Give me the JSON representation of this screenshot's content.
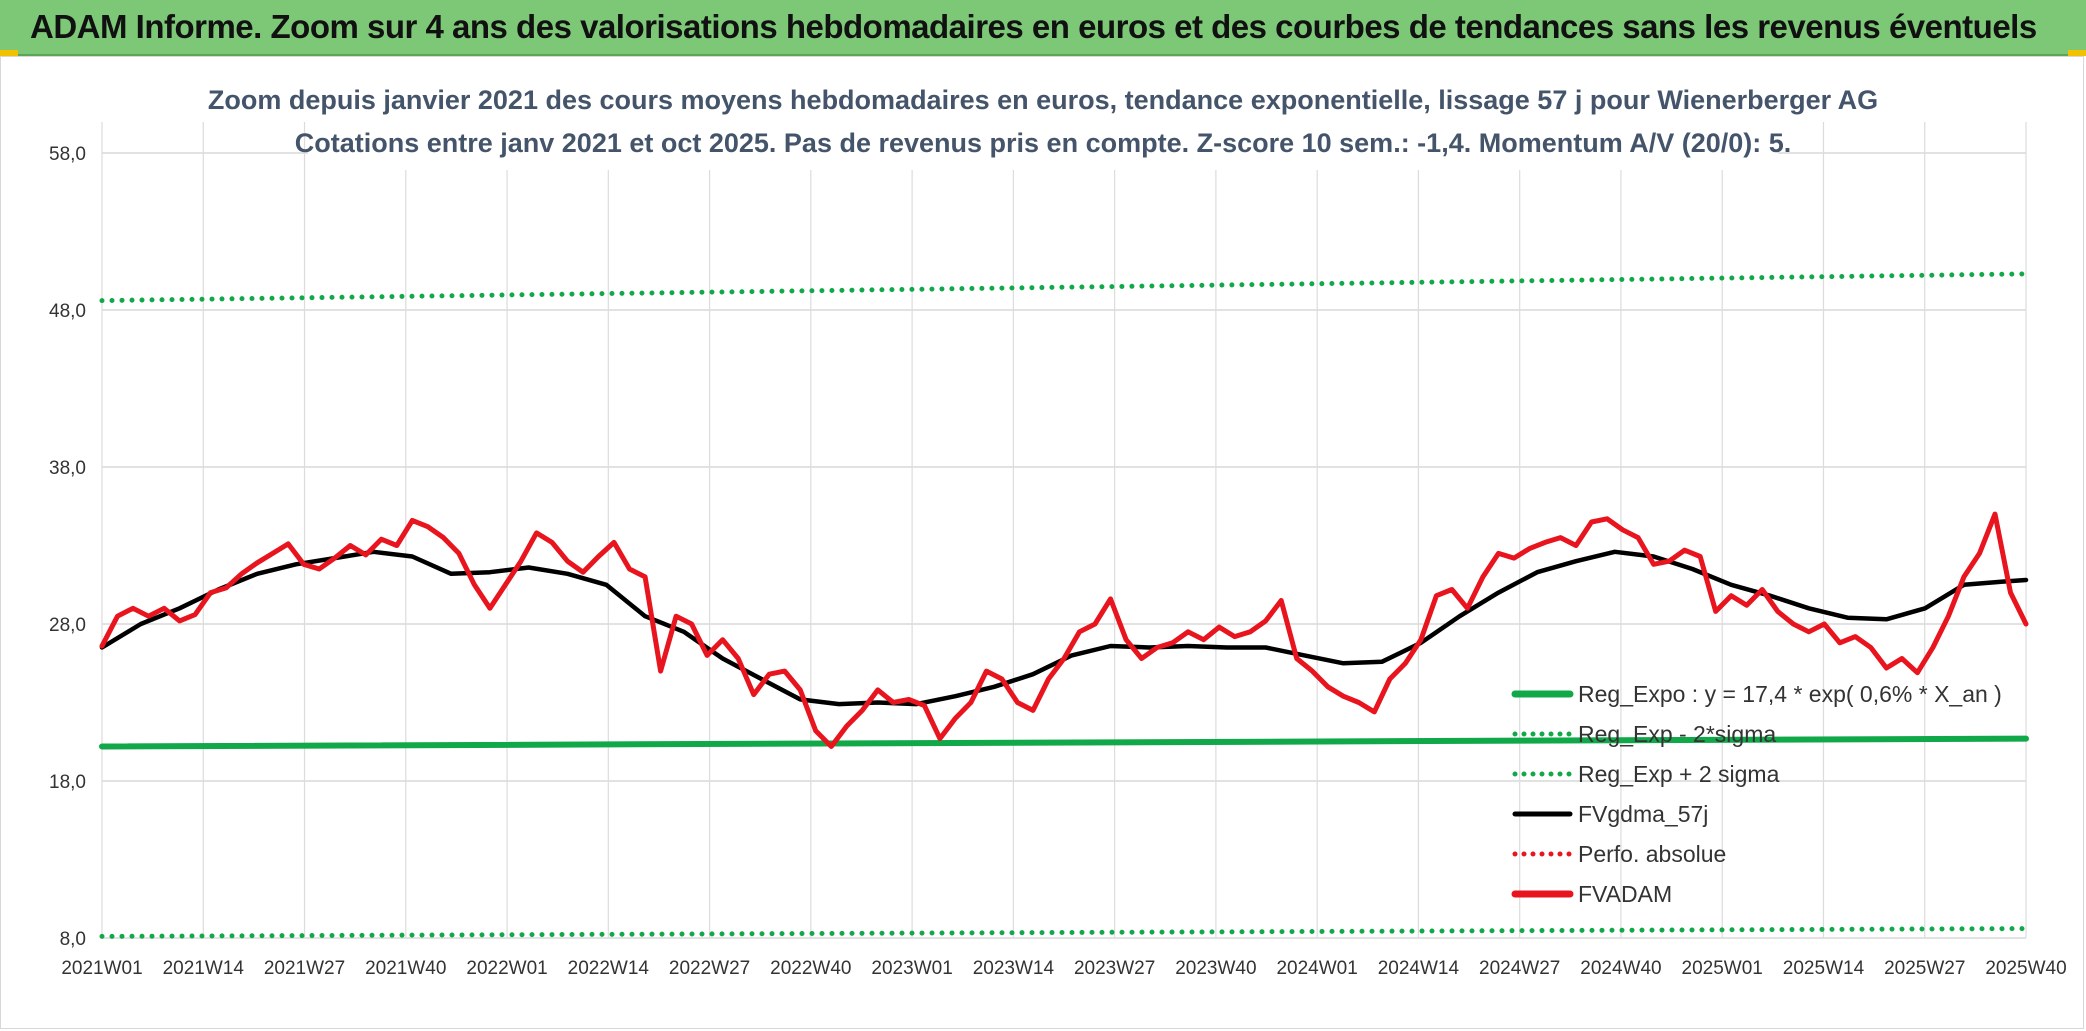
{
  "banner": {
    "title": "ADAM Informe. Zoom sur 4 ans des valorisations hebdomadaires en euros et des courbes de tendances sans les revenus éventuels",
    "color": "#7cc877"
  },
  "chart_data": {
    "type": "line",
    "title_line1": "Zoom depuis janvier 2021 des cours moyens hebdomadaires en euros, tendance exponentielle, lissage 57 j pour Wienerberger AG",
    "title_line2": "Cotations entre janv 2021 et oct 2025. Pas de revenus pris en compte. Z-score 10 sem.: -1,4. Momentum A/V (20/0): 5.",
    "ylim": [
      8,
      58
    ],
    "y_ticks": [
      "8,0",
      "18,0",
      "28,0",
      "38,0",
      "48,0",
      "58,0"
    ],
    "y_tick_values": [
      8,
      18,
      28,
      38,
      48,
      58
    ],
    "x_ticks": [
      "2021W01",
      "2021W14",
      "2021W27",
      "2021W40",
      "2022W01",
      "2022W14",
      "2022W27",
      "2022W40",
      "2023W01",
      "2023W14",
      "2023W27",
      "2023W40",
      "2024W01",
      "2024W14",
      "2024W27",
      "2024W40",
      "2025W01",
      "2025W14",
      "2025W27",
      "2025W40"
    ],
    "n_weeks": 248,
    "grid": true,
    "legend_position": "right",
    "series": [
      {
        "name": "Reg_Expo : y = 17,4 * exp( 0,6% *  X_an )",
        "color": "#11a84a",
        "style": "solid",
        "points": [
          [
            0,
            20.2
          ],
          [
            248,
            20.7
          ]
        ]
      },
      {
        "name": "Reg_Exp - 2*sigma",
        "color": "#11a84a",
        "style": "dotted",
        "points": [
          [
            0,
            8.1
          ],
          [
            248,
            8.6
          ]
        ]
      },
      {
        "name": "Reg_Exp + 2 sigma",
        "color": "#11a84a",
        "style": "dotted",
        "points": [
          [
            0,
            48.6
          ],
          [
            248,
            50.3
          ]
        ]
      },
      {
        "name": "FVgdma_57j",
        "color": "#000000",
        "style": "solid",
        "points": [
          [
            0,
            26.5
          ],
          [
            5,
            28.0
          ],
          [
            10,
            29.0
          ],
          [
            15,
            30.2
          ],
          [
            20,
            31.2
          ],
          [
            25,
            31.8
          ],
          [
            30,
            32.2
          ],
          [
            35,
            32.6
          ],
          [
            40,
            32.3
          ],
          [
            45,
            31.2
          ],
          [
            50,
            31.3
          ],
          [
            55,
            31.6
          ],
          [
            60,
            31.2
          ],
          [
            65,
            30.5
          ],
          [
            70,
            28.5
          ],
          [
            75,
            27.5
          ],
          [
            80,
            25.8
          ],
          [
            85,
            24.5
          ],
          [
            90,
            23.2
          ],
          [
            95,
            22.9
          ],
          [
            100,
            23.0
          ],
          [
            105,
            22.9
          ],
          [
            110,
            23.4
          ],
          [
            115,
            24.0
          ],
          [
            120,
            24.8
          ],
          [
            125,
            26.0
          ],
          [
            130,
            26.6
          ],
          [
            135,
            26.5
          ],
          [
            140,
            26.6
          ],
          [
            145,
            26.5
          ],
          [
            150,
            26.5
          ],
          [
            155,
            26.0
          ],
          [
            160,
            25.5
          ],
          [
            165,
            25.6
          ],
          [
            170,
            26.8
          ],
          [
            175,
            28.5
          ],
          [
            180,
            30.0
          ],
          [
            185,
            31.3
          ],
          [
            190,
            32.0
          ],
          [
            195,
            32.6
          ],
          [
            200,
            32.3
          ],
          [
            205,
            31.5
          ],
          [
            210,
            30.5
          ],
          [
            215,
            29.8
          ],
          [
            220,
            29.0
          ],
          [
            225,
            28.4
          ],
          [
            230,
            28.3
          ],
          [
            235,
            29.0
          ],
          [
            240,
            30.5
          ],
          [
            245,
            30.7
          ],
          [
            248,
            30.8
          ]
        ]
      },
      {
        "name": "Perfo. absolue",
        "color": "#e8141e",
        "style": "dotted",
        "points": []
      },
      {
        "name": "FVADAM",
        "color": "#e8141e",
        "style": "solid",
        "points": [
          [
            0,
            26.6
          ],
          [
            2,
            28.5
          ],
          [
            4,
            29.0
          ],
          [
            6,
            28.5
          ],
          [
            8,
            29.0
          ],
          [
            10,
            28.2
          ],
          [
            12,
            28.6
          ],
          [
            14,
            30.0
          ],
          [
            16,
            30.3
          ],
          [
            18,
            31.2
          ],
          [
            20,
            31.9
          ],
          [
            22,
            32.5
          ],
          [
            24,
            33.1
          ],
          [
            26,
            31.8
          ],
          [
            28,
            31.5
          ],
          [
            30,
            32.2
          ],
          [
            32,
            33.0
          ],
          [
            34,
            32.4
          ],
          [
            36,
            33.4
          ],
          [
            38,
            33.0
          ],
          [
            40,
            34.6
          ],
          [
            42,
            34.2
          ],
          [
            44,
            33.5
          ],
          [
            46,
            32.5
          ],
          [
            48,
            30.5
          ],
          [
            50,
            29.0
          ],
          [
            52,
            30.5
          ],
          [
            54,
            32.0
          ],
          [
            56,
            33.8
          ],
          [
            58,
            33.2
          ],
          [
            60,
            32.0
          ],
          [
            62,
            31.3
          ],
          [
            64,
            32.3
          ],
          [
            66,
            33.2
          ],
          [
            68,
            31.5
          ],
          [
            70,
            31.0
          ],
          [
            72,
            25.0
          ],
          [
            74,
            28.5
          ],
          [
            76,
            28.0
          ],
          [
            78,
            26.0
          ],
          [
            80,
            27.0
          ],
          [
            82,
            25.8
          ],
          [
            84,
            23.5
          ],
          [
            86,
            24.8
          ],
          [
            88,
            25.0
          ],
          [
            90,
            23.8
          ],
          [
            92,
            21.2
          ],
          [
            94,
            20.2
          ],
          [
            96,
            21.5
          ],
          [
            98,
            22.5
          ],
          [
            100,
            23.8
          ],
          [
            102,
            23.0
          ],
          [
            104,
            23.2
          ],
          [
            106,
            22.8
          ],
          [
            108,
            20.7
          ],
          [
            110,
            22.0
          ],
          [
            112,
            23.0
          ],
          [
            114,
            25.0
          ],
          [
            116,
            24.5
          ],
          [
            118,
            23.0
          ],
          [
            120,
            22.5
          ],
          [
            122,
            24.5
          ],
          [
            124,
            25.8
          ],
          [
            126,
            27.5
          ],
          [
            128,
            28.0
          ],
          [
            130,
            29.6
          ],
          [
            132,
            27.0
          ],
          [
            134,
            25.8
          ],
          [
            136,
            26.5
          ],
          [
            138,
            26.8
          ],
          [
            140,
            27.5
          ],
          [
            142,
            27.0
          ],
          [
            144,
            27.8
          ],
          [
            146,
            27.2
          ],
          [
            148,
            27.5
          ],
          [
            150,
            28.2
          ],
          [
            152,
            29.5
          ],
          [
            154,
            25.8
          ],
          [
            156,
            25.0
          ],
          [
            158,
            24.0
          ],
          [
            160,
            23.4
          ],
          [
            162,
            23.0
          ],
          [
            164,
            22.4
          ],
          [
            166,
            24.5
          ],
          [
            168,
            25.5
          ],
          [
            170,
            27.0
          ],
          [
            172,
            29.8
          ],
          [
            174,
            30.2
          ],
          [
            176,
            29.0
          ],
          [
            178,
            31.0
          ],
          [
            180,
            32.5
          ],
          [
            182,
            32.2
          ],
          [
            184,
            32.8
          ],
          [
            186,
            33.2
          ],
          [
            188,
            33.5
          ],
          [
            190,
            33.0
          ],
          [
            192,
            34.5
          ],
          [
            194,
            34.7
          ],
          [
            196,
            34.0
          ],
          [
            198,
            33.5
          ],
          [
            200,
            31.8
          ],
          [
            202,
            32.0
          ],
          [
            204,
            32.7
          ],
          [
            206,
            32.3
          ],
          [
            208,
            28.8
          ],
          [
            210,
            29.8
          ],
          [
            212,
            29.2
          ],
          [
            214,
            30.2
          ],
          [
            216,
            28.8
          ],
          [
            218,
            28.0
          ],
          [
            220,
            27.5
          ],
          [
            222,
            28.0
          ],
          [
            224,
            26.8
          ],
          [
            226,
            27.2
          ],
          [
            228,
            26.5
          ],
          [
            230,
            25.2
          ],
          [
            232,
            25.8
          ],
          [
            234,
            24.9
          ],
          [
            236,
            26.5
          ],
          [
            238,
            28.5
          ],
          [
            240,
            31.0
          ],
          [
            242,
            32.5
          ],
          [
            244,
            35.0
          ],
          [
            246,
            30.0
          ],
          [
            248,
            28.0
          ]
        ]
      }
    ]
  }
}
